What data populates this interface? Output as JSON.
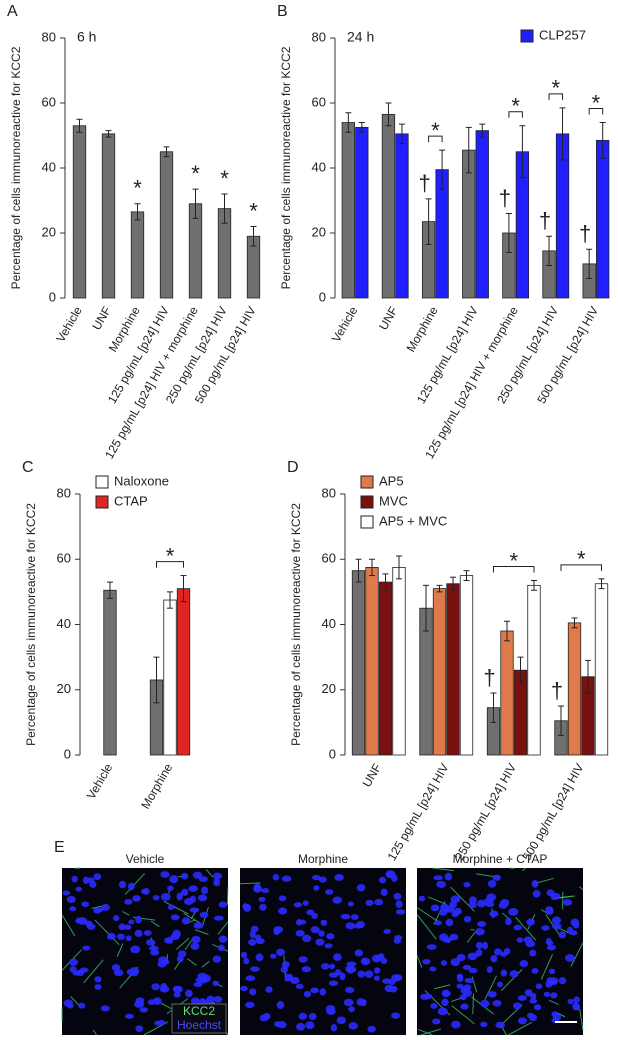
{
  "chart_data": [
    {
      "type": "bar",
      "panel_label": "A",
      "annotation": "6 h",
      "y_label": "Percentage of cells immunoreactive for KCC2",
      "categories": [
        "Vehicle",
        "UNF",
        "Morphine",
        "125 pg/mL [p24] HIV",
        "125 pg/mL [p24] HIV + morphine",
        "250 pg/mL [p24] HIV",
        "500 pg/mL [p24] HIV"
      ],
      "series": [
        {
          "color": "#707070",
          "values": [
            53,
            50.5,
            26.5,
            45,
            29,
            27.5,
            19
          ],
          "errors": [
            2,
            1,
            2.5,
            1.5,
            4.5,
            4.5,
            3
          ],
          "markers": [
            null,
            null,
            "*",
            null,
            "*",
            "*",
            "*"
          ]
        }
      ],
      "ylim": [
        0,
        80
      ],
      "yticks": [
        0,
        20,
        40,
        60,
        80
      ]
    },
    {
      "type": "bar",
      "panel_label": "B",
      "annotation": "24 h",
      "y_label": "Percentage of cells immunoreactive for KCC2",
      "categories": [
        "Vehicle",
        "UNF",
        "Morphine",
        "125 pg/mL [p24] HIV",
        "125 pg/mL [p24] HIV + morphine",
        "250 pg/mL [p24] HIV",
        "500 pg/mL [p24] HIV"
      ],
      "series": [
        {
          "color": "#707070",
          "values": [
            54,
            56.5,
            23.5,
            45.5,
            20,
            14.5,
            10.5
          ],
          "errors": [
            3,
            3.5,
            7,
            7,
            6,
            4.5,
            4.5
          ],
          "markers": [
            null,
            null,
            "†",
            null,
            "†",
            "†",
            "†"
          ]
        },
        {
          "name": "CLP257",
          "color": "#1f1fff",
          "values": [
            52.5,
            50.5,
            39.5,
            51.5,
            45,
            50.5,
            48.5
          ],
          "errors": [
            1.5,
            3,
            6,
            2,
            8,
            8,
            5.5
          ]
        }
      ],
      "comparison_labels": [
        null,
        null,
        "*",
        null,
        "*",
        "*",
        "*"
      ],
      "legend_position": "upper right",
      "ylim": [
        0,
        80
      ],
      "yticks": [
        0,
        20,
        40,
        60,
        80
      ]
    },
    {
      "type": "bar",
      "panel_label": "C",
      "y_label": "Percentage of cells immunoreactive for KCC2",
      "categories": [
        "Vehicle",
        "Morphine"
      ],
      "series": [
        {
          "color": "#707070",
          "values": [
            50.5,
            23
          ],
          "errors": [
            2.5,
            7
          ]
        },
        {
          "name": "Naloxone",
          "color": "#ffffff",
          "values": [
            null,
            47.5
          ],
          "errors": [
            null,
            2.5
          ]
        },
        {
          "name": "CTAP",
          "color": "#e02525",
          "values": [
            null,
            51
          ],
          "errors": [
            null,
            4
          ]
        }
      ],
      "comparison_labels": [
        null,
        "*"
      ],
      "legend_position": "upper left",
      "ylim": [
        0,
        80
      ],
      "yticks": [
        0,
        20,
        40,
        60,
        80
      ]
    },
    {
      "type": "bar",
      "panel_label": "D",
      "y_label": "Percentage of cells immunoreactive for KCC2",
      "categories": [
        "UNF",
        "125 pg/mL [p24] HIV",
        "250 pg/mL [p24] HIV",
        "500 pg/mL [p24] HIV"
      ],
      "series": [
        {
          "color": "#707070",
          "values": [
            56.5,
            45,
            14.5,
            10.5
          ],
          "errors": [
            3.5,
            7,
            4.5,
            4.5
          ],
          "markers": [
            null,
            null,
            "†",
            "†"
          ]
        },
        {
          "name": "AP5",
          "color": "#e07a4a",
          "values": [
            57.5,
            51,
            38,
            40.5
          ],
          "errors": [
            2.5,
            1,
            3,
            1.5
          ]
        },
        {
          "name": "MVC",
          "color": "#7a1010",
          "values": [
            53,
            52.5,
            26,
            24
          ],
          "errors": [
            2.5,
            2,
            4,
            5
          ]
        },
        {
          "name": "AP5 + MVC",
          "color": "#ffffff",
          "values": [
            57.5,
            55,
            52,
            52.5
          ],
          "errors": [
            3.5,
            1.5,
            1.5,
            1.5
          ]
        }
      ],
      "comparison_labels": [
        null,
        null,
        "*",
        "*"
      ],
      "legend_position": "upper left",
      "ylim": [
        0,
        80
      ],
      "yticks": [
        0,
        20,
        40,
        60,
        80
      ]
    }
  ],
  "micrographs": {
    "panel_label": "E",
    "titles": [
      "Vehicle",
      "Morphine",
      "Morphine + CTAP"
    ],
    "stains": [
      "KCC2",
      "Hoechst"
    ]
  }
}
